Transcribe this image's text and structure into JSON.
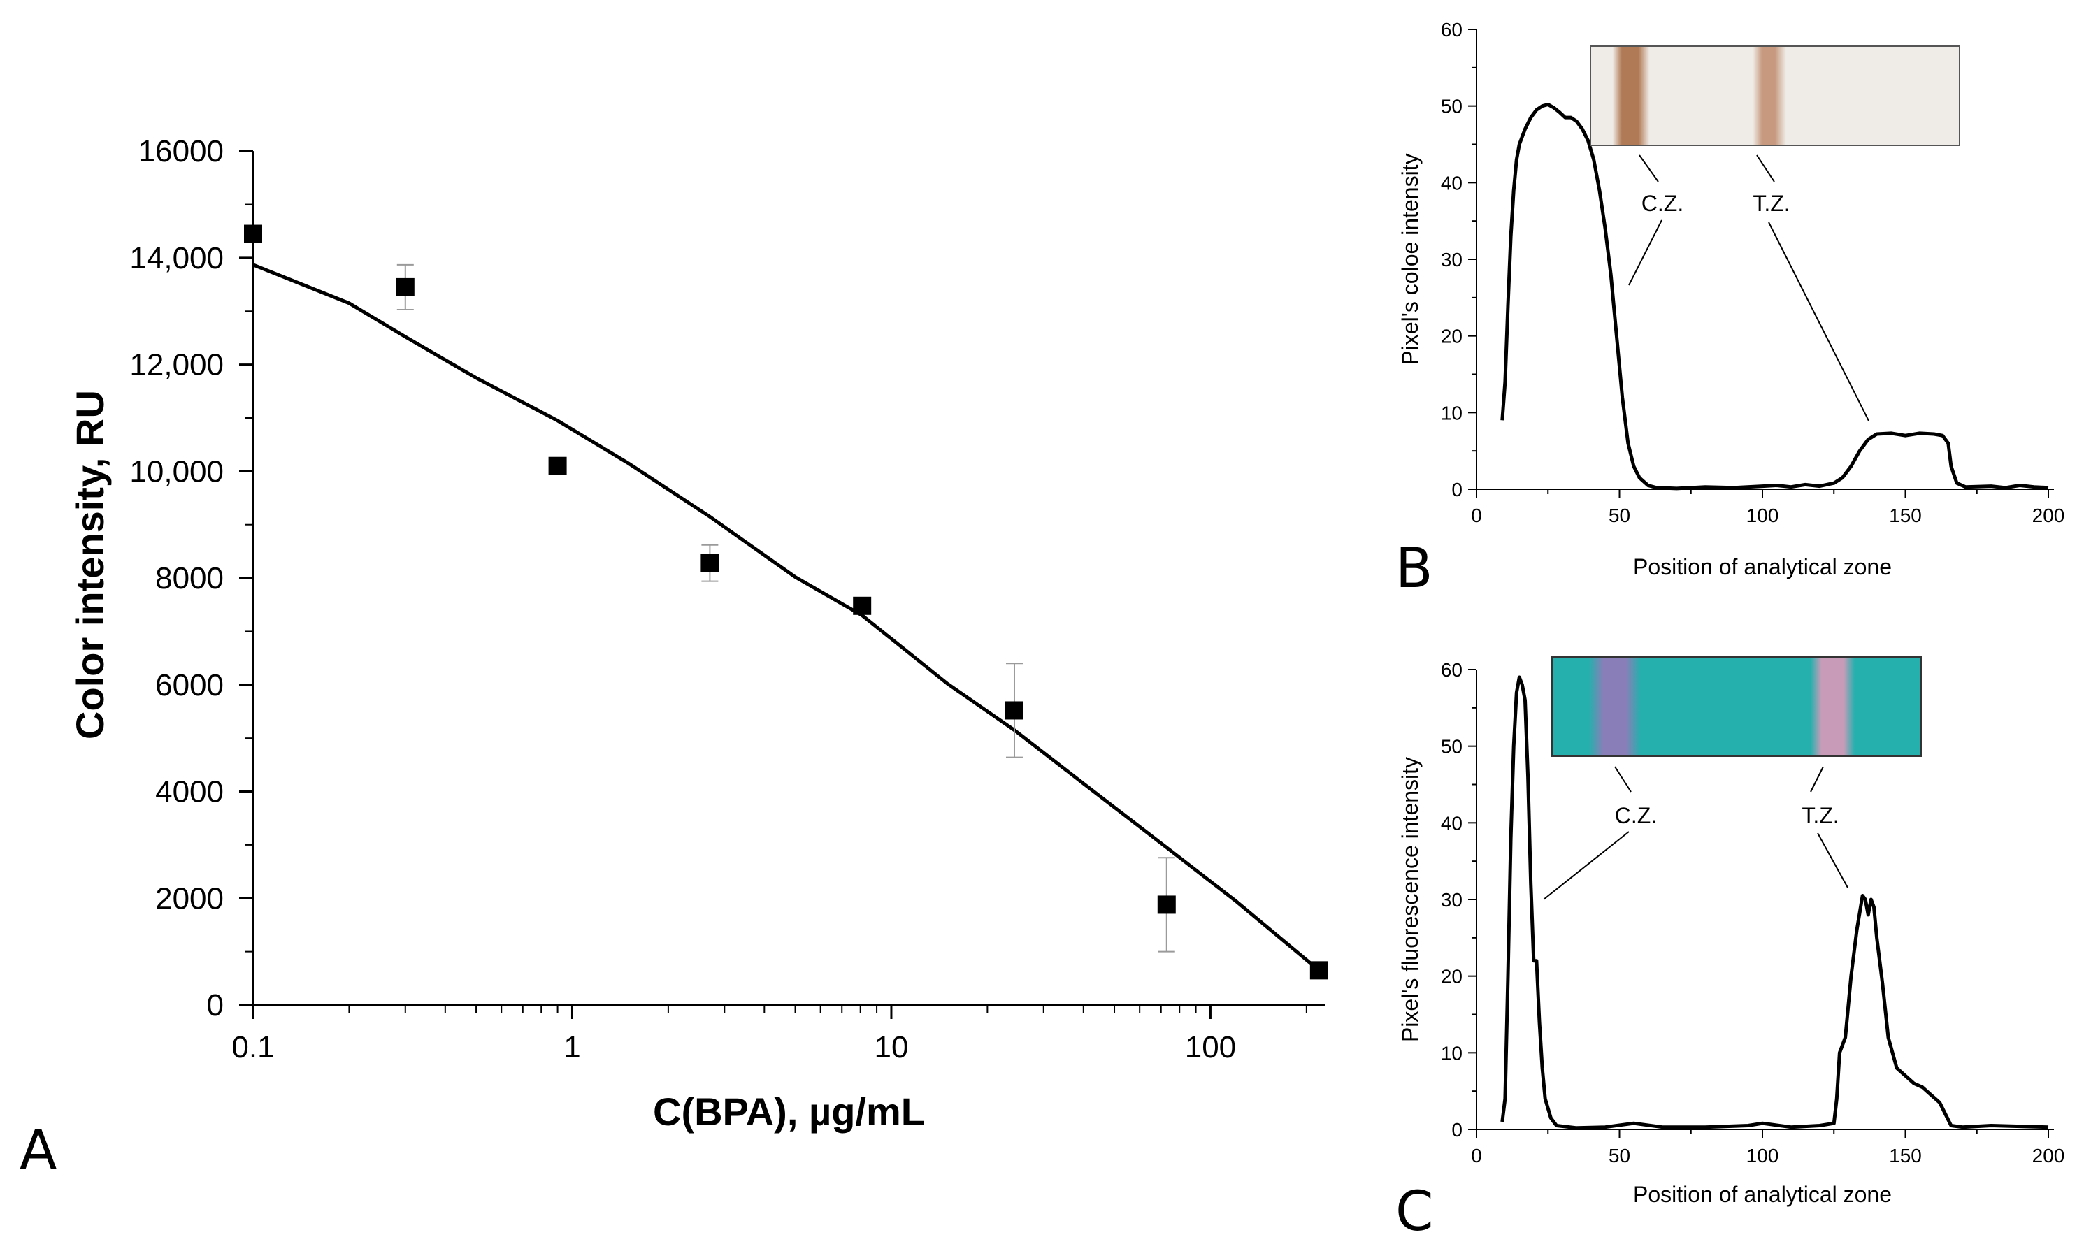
{
  "chart_data": [
    {
      "panel_label": "A",
      "type": "scatter",
      "xlabel": "C(BPA), µg/mL",
      "ylabel": "Color intensity, RU",
      "xscale": "log",
      "xlim": [
        0.1,
        240
      ],
      "ylim": [
        0,
        16500
      ],
      "x_ticks": [
        {
          "value": 0.1,
          "label": "0.1"
        },
        {
          "value": 1,
          "label": "1"
        },
        {
          "value": 10,
          "label": "10"
        },
        {
          "value": 100,
          "label": "100"
        }
      ],
      "y_ticks": [
        {
          "value": 0,
          "label": "0"
        },
        {
          "value": 2000,
          "label": "2000"
        },
        {
          "value": 4000,
          "label": "4000"
        },
        {
          "value": 6000,
          "label": "6000"
        },
        {
          "value": 8000,
          "label": "8000"
        },
        {
          "value": 10000,
          "label": "10,000"
        },
        {
          "value": 12000,
          "label": "12,000"
        },
        {
          "value": 14000,
          "label": "14,000"
        },
        {
          "value": 16000,
          "label": "16000"
        }
      ],
      "points": [
        {
          "x": 0.1,
          "y": 14450,
          "err": 0
        },
        {
          "x": 0.3,
          "y": 13450,
          "err": 420
        },
        {
          "x": 0.9,
          "y": 10100,
          "err": 0
        },
        {
          "x": 2.7,
          "y": 8280,
          "err": 340
        },
        {
          "x": 8.1,
          "y": 7480,
          "err": 0
        },
        {
          "x": 24.3,
          "y": 5520,
          "err": 880
        },
        {
          "x": 72.9,
          "y": 1880,
          "err": 880
        },
        {
          "x": 219,
          "y": 650,
          "err": 0
        }
      ],
      "fit": [
        [
          0.1,
          13870
        ],
        [
          0.2,
          13150
        ],
        [
          0.3,
          12520
        ],
        [
          0.5,
          11750
        ],
        [
          0.9,
          10950
        ],
        [
          1.5,
          10150
        ],
        [
          2.7,
          9150
        ],
        [
          5,
          8020
        ],
        [
          8.1,
          7300
        ],
        [
          15,
          6020
        ],
        [
          24.3,
          5150
        ],
        [
          40,
          4150
        ],
        [
          72.9,
          2950
        ],
        [
          120,
          1950
        ],
        [
          219,
          650
        ]
      ]
    },
    {
      "panel_label": "B",
      "type": "line",
      "xlabel": "Position of analytical zone",
      "ylabel": "Pixel's coloe intensity",
      "xlim": [
        0,
        200
      ],
      "ylim": [
        0,
        60
      ],
      "x_ticks": [
        "0",
        "50",
        "100",
        "150",
        "200"
      ],
      "y_ticks": [
        "0",
        "10",
        "20",
        "30",
        "40",
        "50",
        "60"
      ],
      "annotations": [
        "C.Z.",
        "T.Z."
      ],
      "profile": [
        [
          9,
          9
        ],
        [
          10,
          14
        ],
        [
          11,
          24
        ],
        [
          12,
          33
        ],
        [
          13,
          39
        ],
        [
          14,
          43
        ],
        [
          15,
          45
        ],
        [
          17,
          47
        ],
        [
          19,
          48.5
        ],
        [
          21,
          49.5
        ],
        [
          23,
          50
        ],
        [
          25,
          50.2
        ],
        [
          27,
          49.8
        ],
        [
          29,
          49.2
        ],
        [
          31,
          48.5
        ],
        [
          33,
          48.5
        ],
        [
          35,
          48
        ],
        [
          37,
          47
        ],
        [
          39,
          45.5
        ],
        [
          41,
          43
        ],
        [
          43,
          39
        ],
        [
          45,
          34
        ],
        [
          47,
          28
        ],
        [
          49,
          20
        ],
        [
          51,
          12
        ],
        [
          53,
          6
        ],
        [
          55,
          3
        ],
        [
          57,
          1.5
        ],
        [
          60,
          0.5
        ],
        [
          63,
          0.2
        ],
        [
          70,
          0.1
        ],
        [
          80,
          0.3
        ],
        [
          90,
          0.2
        ],
        [
          100,
          0.4
        ],
        [
          105,
          0.5
        ],
        [
          110,
          0.3
        ],
        [
          115,
          0.6
        ],
        [
          120,
          0.4
        ],
        [
          125,
          0.8
        ],
        [
          128,
          1.5
        ],
        [
          131,
          3
        ],
        [
          134,
          5
        ],
        [
          137,
          6.5
        ],
        [
          140,
          7.2
        ],
        [
          145,
          7.3
        ],
        [
          150,
          7.0
        ],
        [
          155,
          7.3
        ],
        [
          160,
          7.2
        ],
        [
          163,
          7.0
        ],
        [
          165,
          6
        ],
        [
          166,
          3
        ],
        [
          168,
          0.8
        ],
        [
          171,
          0.3
        ],
        [
          180,
          0.4
        ],
        [
          185,
          0.2
        ],
        [
          190,
          0.5
        ],
        [
          195,
          0.3
        ],
        [
          200,
          0.2
        ]
      ],
      "strip_colors": [
        "#efece7",
        "#b17a56",
        "#c79a80"
      ]
    },
    {
      "panel_label": "C",
      "type": "line",
      "xlabel": "Position of analytical zone",
      "ylabel": "Pixel's fluorescence intensity",
      "xlim": [
        0,
        200
      ],
      "ylim": [
        0,
        60
      ],
      "x_ticks": [
        "0",
        "50",
        "100",
        "150",
        "200"
      ],
      "y_ticks": [
        "0",
        "10",
        "20",
        "30",
        "40",
        "50",
        "60"
      ],
      "annotations": [
        "C.Z.",
        "T.Z."
      ],
      "profile": [
        [
          9,
          1
        ],
        [
          10,
          4
        ],
        [
          11,
          20
        ],
        [
          12,
          38
        ],
        [
          13,
          50
        ],
        [
          14,
          57
        ],
        [
          15,
          59
        ],
        [
          16,
          58
        ],
        [
          17,
          56
        ],
        [
          18,
          46
        ],
        [
          19,
          32
        ],
        [
          20,
          22
        ],
        [
          21,
          22
        ],
        [
          22,
          14
        ],
        [
          23,
          8
        ],
        [
          24,
          4
        ],
        [
          26,
          1.5
        ],
        [
          28,
          0.5
        ],
        [
          35,
          0.2
        ],
        [
          45,
          0.3
        ],
        [
          55,
          0.8
        ],
        [
          65,
          0.3
        ],
        [
          80,
          0.3
        ],
        [
          95,
          0.5
        ],
        [
          100,
          0.8
        ],
        [
          110,
          0.3
        ],
        [
          120,
          0.5
        ],
        [
          125,
          0.8
        ],
        [
          126,
          4
        ],
        [
          127,
          10
        ],
        [
          129,
          12
        ],
        [
          131,
          20
        ],
        [
          133,
          26
        ],
        [
          135,
          30.5
        ],
        [
          136,
          30
        ],
        [
          137,
          28
        ],
        [
          138,
          30
        ],
        [
          139,
          29
        ],
        [
          140,
          25
        ],
        [
          142,
          19
        ],
        [
          144,
          12
        ],
        [
          147,
          8
        ],
        [
          150,
          7
        ],
        [
          153,
          6
        ],
        [
          156,
          5.5
        ],
        [
          159,
          4.5
        ],
        [
          162,
          3.5
        ],
        [
          164,
          2
        ],
        [
          166,
          0.5
        ],
        [
          170,
          0.3
        ],
        [
          180,
          0.5
        ],
        [
          190,
          0.4
        ],
        [
          200,
          0.3
        ]
      ],
      "strip_colors": [
        "#25b0ad",
        "#8a7eb8",
        "#c89cb8"
      ]
    }
  ]
}
